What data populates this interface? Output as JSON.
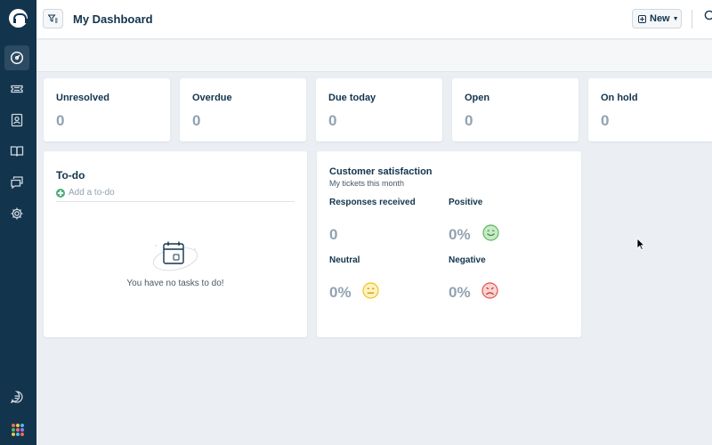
{
  "header": {
    "title": "My Dashboard",
    "new_label": "New"
  },
  "stats": [
    {
      "label": "Unresolved",
      "value": "0"
    },
    {
      "label": "Overdue",
      "value": "0"
    },
    {
      "label": "Due today",
      "value": "0"
    },
    {
      "label": "Open",
      "value": "0"
    },
    {
      "label": "On hold",
      "value": "0"
    }
  ],
  "todo": {
    "title": "To-do",
    "add_placeholder": "Add a to-do",
    "empty_message": "You have no tasks to do!"
  },
  "csat": {
    "title": "Customer satisfaction",
    "subtitle": "My tickets this month",
    "responses_label": "Responses received",
    "responses_value": "0",
    "positive_label": "Positive",
    "positive_value": "0%",
    "neutral_label": "Neutral",
    "neutral_value": "0%",
    "negative_label": "Negative",
    "negative_value": "0%"
  },
  "colors": {
    "sidebar": "#12344d",
    "positive": "#5cb85c",
    "neutral": "#f0c419",
    "negative": "#e5534b"
  },
  "sidebar_icons": [
    "logo-headset-icon",
    "dashboard-gauge-icon",
    "tickets-icon",
    "contacts-icon",
    "knowledge-base-book-icon",
    "chat-icon",
    "settings-gear-icon",
    "freshchat-icon",
    "apps-grid-icon"
  ]
}
